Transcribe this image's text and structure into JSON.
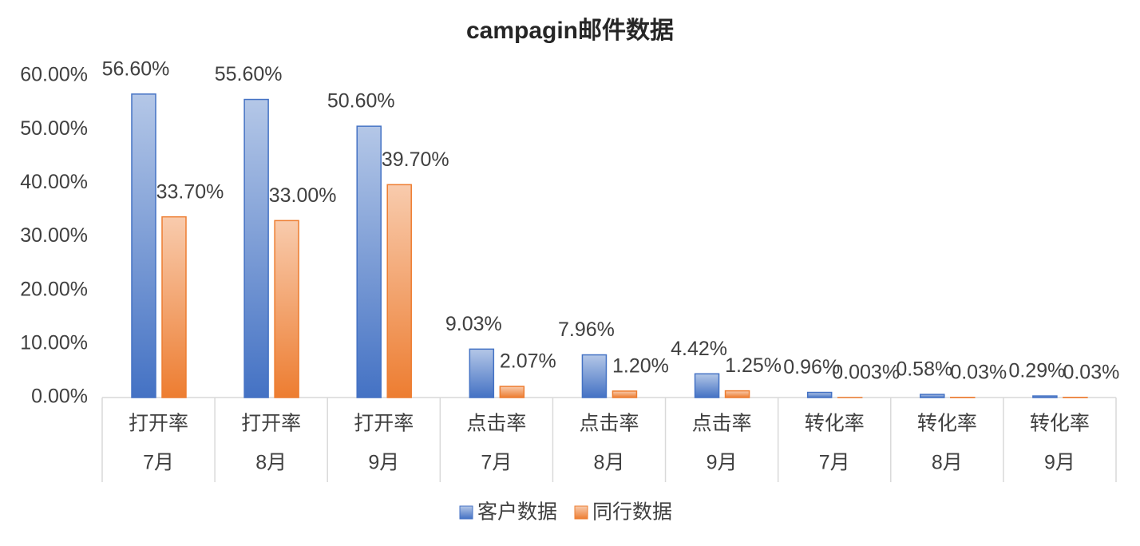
{
  "chart_data": {
    "type": "bar",
    "title": "campagin邮件数据",
    "categories": [
      [
        "打开率",
        "7月"
      ],
      [
        "打开率",
        "8月"
      ],
      [
        "打开率",
        "9月"
      ],
      [
        "点击率",
        "7月"
      ],
      [
        "点击率",
        "8月"
      ],
      [
        "点击率",
        "9月"
      ],
      [
        "转化率",
        "7月"
      ],
      [
        "转化率",
        "8月"
      ],
      [
        "转化率",
        "9月"
      ]
    ],
    "series": [
      {
        "name": "客户数据",
        "color": "#4472c4",
        "values": [
          56.6,
          55.6,
          50.6,
          9.03,
          7.96,
          4.42,
          0.96,
          0.58,
          0.29
        ],
        "value_labels": [
          "56.60%",
          "55.60%",
          "50.60%",
          "9.03%",
          "7.96%",
          "4.42%",
          "0.96%",
          "0.58%",
          "0.29%"
        ]
      },
      {
        "name": "同行数据",
        "color": "#ed7d31",
        "values": [
          33.7,
          33.0,
          39.7,
          2.07,
          1.2,
          1.25,
          0.003,
          0.03,
          0.03
        ],
        "value_labels": [
          "33.70%",
          "33.00%",
          "39.70%",
          "2.07%",
          "1.20%",
          "1.25%",
          "0.003%",
          "0.03%",
          "0.03%"
        ]
      }
    ],
    "ylim": [
      0,
      60
    ],
    "yticks": [
      {
        "value": 0,
        "label": "0.00%"
      },
      {
        "value": 10,
        "label": "10.00%"
      },
      {
        "value": 20,
        "label": "20.00%"
      },
      {
        "value": 30,
        "label": "30.00%"
      },
      {
        "value": 40,
        "label": "40.00%"
      },
      {
        "value": 50,
        "label": "50.00%"
      },
      {
        "value": 60,
        "label": "60.00%"
      }
    ],
    "grid": false,
    "legend": "bottom"
  }
}
